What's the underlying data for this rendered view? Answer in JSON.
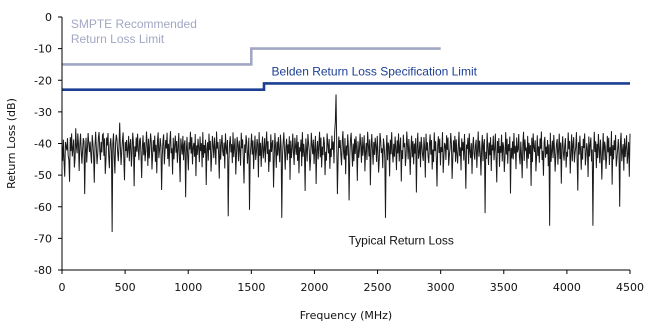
{
  "chart_data": {
    "type": "line",
    "xlabel": "Frequency (MHz)",
    "ylabel": "Return Loss (dB)",
    "xlim": [
      0,
      4500
    ],
    "ylim": [
      -80,
      0
    ],
    "xticks": [
      0,
      500,
      1000,
      1500,
      2000,
      2500,
      3000,
      3500,
      4000,
      4500
    ],
    "yticks": [
      0,
      -10,
      -20,
      -30,
      -40,
      -50,
      -60,
      -70,
      -80
    ],
    "grid": false,
    "legend": "none",
    "series": [
      {
        "name": "SMPTE Recommended Return Loss Limit",
        "color": "#a2a7c3",
        "x": [
          0,
          1500,
          1500,
          3000
        ],
        "y": [
          -15,
          -15,
          -10,
          -10
        ]
      },
      {
        "name": "Belden Return Loss Specification Limit",
        "color": "#1c3f94",
        "x": [
          0,
          1600,
          1600,
          4500
        ],
        "y": [
          -23,
          -23,
          -21,
          -21
        ]
      },
      {
        "name": "Typical Return Loss",
        "color": "#1a1a1a",
        "x_range": [
          0,
          4500
        ],
        "y": [
          -40.6,
          -45.5,
          -38.8,
          -45.9,
          -50.5,
          -39.5,
          -40.9,
          -42.2,
          -38.3,
          -43.9,
          -45.2,
          -52.1,
          -38.0,
          -42.4,
          -36.8,
          -44.1,
          -41.6,
          -38.7,
          -47.6,
          -44.7,
          -35.2,
          -41.0,
          -43.1,
          -36.8,
          -40.2,
          -48.7,
          -40.4,
          -36.9,
          -42.3,
          -46.4,
          -42.1,
          -38.3,
          -39.3,
          -56.0,
          -43.2,
          -38.2,
          -46.0,
          -41.6,
          -36.7,
          -39.9,
          -42.7,
          -39.4,
          -43.6,
          -46.3,
          -37.3,
          -40.0,
          -43.8,
          -52.4,
          -40.9,
          -36.3,
          -41.4,
          -46.5,
          -43.3,
          -38.1,
          -36.4,
          -42.3,
          -45.2,
          -39.5,
          -42.8,
          -37.2,
          -36.9,
          -43.9,
          -38.4,
          -49.6,
          -45.2,
          -38.1,
          -40.6,
          -36.7,
          -44.1,
          -47.8,
          -40.3,
          -38.3,
          -42.6,
          -68.0,
          -40.1,
          -36.8,
          -44.3,
          -49.5,
          -40.2,
          -37.2,
          -38.6,
          -42.7,
          -45.6,
          -40.8,
          -33.4,
          -41.2,
          -46.8,
          -42.4,
          -39.1,
          -36.5,
          -44.8,
          -51.6,
          -39.5,
          -42.4,
          -38.9,
          -44.5,
          -41.9,
          -37.6,
          -45.6,
          -40.3,
          -38.6,
          -47.3,
          -43.0,
          -36.6,
          -39.8,
          -53.5,
          -40.9,
          -44.2,
          -38.1,
          -42.6,
          -36.9,
          -41.8,
          -45.3,
          -39.0,
          -38.2,
          -43.6,
          -50.9,
          -41.1,
          -37.4,
          -43.7,
          -39.6,
          -45.6,
          -42.3,
          -36.2,
          -40.3,
          -47.1,
          -38.5,
          -44.7,
          -41.3,
          -36.8,
          -39.6,
          -48.2,
          -43.4,
          -38.9,
          -42.6,
          -37.5,
          -45.8,
          -40.4,
          -49.4,
          -39.1,
          -36.5,
          -44.6,
          -42.1,
          -38.3,
          -40.9,
          -54.7,
          -43.9,
          -39.2,
          -37.1,
          -46.6,
          -42.5,
          -38.9,
          -41.6,
          -36.6,
          -44.9,
          -40.1,
          -47.3,
          -39.4,
          -36.1,
          -43.1,
          -41.5,
          -49.8,
          -38.2,
          -45.0,
          -40.7,
          -37.5,
          -42.9,
          -39.2,
          -46.1,
          -41.4,
          -36.7,
          -44.4,
          -52.2,
          -38.4,
          -40.8,
          -43.5,
          -37.6,
          -45.3,
          -40.2,
          -39.0,
          -57.0,
          -42.7,
          -37.9,
          -44.0,
          -48.5,
          -39.6,
          -41.9,
          -36.3,
          -43.2,
          -38.0,
          -46.6,
          -41.1,
          -39.8,
          -44.2,
          -37.0,
          -50.3,
          -40.6,
          -43.6,
          -38.5,
          -41.3,
          -45.9,
          -37.8,
          -42.4,
          -39.9,
          -47.5,
          -36.4,
          -44.5,
          -40.5,
          -43.1,
          -38.8,
          -53.1,
          -41.7,
          -39.6,
          -45.4,
          -36.9,
          -42.1,
          -39.2,
          -48.9,
          -43.8,
          -37.6,
          -40.7,
          -44.6,
          -38.1,
          -42.0,
          -46.7,
          -36.2,
          -41.6,
          -39.5,
          -43.3,
          -51.1,
          -38.6,
          -45.1,
          -40.1,
          -37.3,
          -42.5,
          -44.0,
          -39.7,
          -47.9,
          -36.8,
          -41.2,
          -43.4,
          -38.9,
          -63.0,
          -45.5,
          -39.9,
          -37.7,
          -42.8,
          -40.2,
          -46.2,
          -36.5,
          -44.3,
          -41.0,
          -38.4,
          -49.8,
          -43.7,
          -37.9,
          -40.6,
          -45.6,
          -39.1,
          -42.2,
          -47.0,
          -36.6,
          -41.5,
          -38.7,
          -44.8,
          -52.6,
          -40.3,
          -43.0,
          -37.4,
          -39.6,
          -46.4,
          -42.6,
          -38.2,
          -61.0,
          -44.1,
          -40.8,
          -36.9,
          -43.5,
          -39.0,
          -48.1,
          -41.8,
          -37.5,
          -45.2,
          -42.9,
          -38.6,
          -40.4,
          -50.7,
          -36.4,
          -43.9,
          -39.8,
          -47.4,
          -41.3,
          -37.8,
          -44.7,
          -42.0,
          -38.3,
          -46.0,
          -40.5,
          -36.2,
          -43.3,
          -39.3,
          -49.0,
          -41.9,
          -45.8,
          -37.1,
          -42.7,
          -40.0,
          -38.9,
          -53.9,
          -44.5,
          -36.7,
          -41.4,
          -47.7,
          -39.4,
          -43.8,
          -38.0,
          -42.2,
          -45.9,
          -37.2,
          -40.7,
          -63.5,
          -44.0,
          -39.7,
          -36.5,
          -42.4,
          -48.3,
          -41.1,
          -38.5,
          -45.3,
          -40.3,
          -43.2,
          -37.7,
          -51.5,
          -39.1,
          -44.6,
          -41.7,
          -36.9,
          -42.8,
          -46.8,
          -38.2,
          -40.9,
          -43.6,
          -37.3,
          -45.5,
          -39.5,
          -49.4,
          -41.2,
          -42.5,
          -38.7,
          -47.2,
          -36.4,
          -44.2,
          -40.1,
          -43.0,
          -55.0,
          -38.4,
          -41.8,
          -45.7,
          -37.0,
          -39.9,
          -42.3,
          -48.6,
          -44.9,
          -36.6,
          -40.5,
          -43.4,
          -38.8,
          -46.5,
          -41.5,
          -37.6,
          -52.8,
          -42.1,
          -39.2,
          -45.0,
          -40.6,
          -36.3,
          -44.4,
          -38.1,
          -47.6,
          -41.0,
          -43.7,
          -37.9,
          -39.7,
          -50.0,
          -42.6,
          -45.4,
          -36.8,
          -40.2,
          -43.1,
          -38.6,
          -48.0,
          -41.6,
          -44.3,
          -37.5,
          -42.0,
          -39.4,
          -46.3,
          -36.5,
          -33.0,
          -24.5,
          -40.4,
          -56.0,
          -44.8,
          -37.8,
          -41.4,
          -38.9,
          -43.5,
          -46.9,
          -39.6,
          -36.1,
          -42.9,
          -45.1,
          -38.3,
          -49.7,
          -40.7,
          -43.8,
          -37.1,
          -41.3,
          -58.0,
          -44.0,
          -39.0,
          -36.6,
          -42.4,
          -47.3,
          -40.0,
          -45.6,
          -38.5,
          -43.3,
          -37.7,
          -41.7,
          -51.8,
          -39.3,
          -44.5,
          -42.2,
          -36.9,
          -40.8,
          -46.1,
          -38.0,
          -43.9,
          -41.1,
          -37.4,
          -48.8,
          -42.7,
          -39.8,
          -45.2,
          -36.3,
          -40.3,
          -44.1,
          -38.7,
          -53.2,
          -42.0,
          -37.0,
          -41.9,
          -46.7,
          -39.5,
          -43.6,
          -38.2,
          -40.9,
          -45.8,
          -37.6,
          -42.5,
          -49.2,
          -44.7,
          -36.7,
          -39.1,
          -43.0,
          -41.5,
          -47.8,
          -38.4,
          -40.5,
          -44.6,
          -63.5,
          -42.3,
          -37.3,
          -45.3,
          -39.7,
          -41.0,
          -50.4,
          -38.8,
          -43.4,
          -36.4,
          -42.8,
          -46.0,
          -40.1,
          -44.2,
          -37.8,
          -41.6,
          -48.4,
          -39.0,
          -43.1,
          -36.8,
          -45.7,
          -40.6,
          -38.1,
          -52.0,
          -42.1,
          -44.9,
          -37.2,
          -41.2,
          -39.9,
          -47.1,
          -43.7,
          -36.2,
          -40.4,
          -45.0,
          -38.6,
          -42.6,
          -49.9,
          -41.8,
          -37.5,
          -44.4,
          -39.2,
          -46.6,
          -40.0,
          -43.2,
          -38.3,
          -55.5,
          -41.4,
          -36.6,
          -44.8,
          -42.9,
          -39.4,
          -47.5,
          -37.9,
          -40.7,
          -43.8,
          -45.5,
          -38.0,
          -41.3,
          -50.8,
          -36.9,
          -42.2,
          -39.6,
          -44.1,
          -46.2,
          -40.2,
          -37.1,
          -43.5,
          -38.9,
          -48.2,
          -41.9,
          -45.9,
          -36.5,
          -42.4,
          -39.3,
          -44.7,
          -53.6,
          -40.8,
          -37.7,
          -43.0,
          -38.5,
          -46.9,
          -41.1,
          -42.7,
          -36.4,
          -49.3,
          -44.3,
          -39.8,
          -40.5,
          -45.2,
          -37.4,
          -42.0,
          -38.1,
          -47.0,
          -43.6,
          -41.6,
          -36.7,
          -40.1,
          -51.2,
          -44.5,
          -39.0,
          -42.8,
          -37.6,
          -45.8,
          -38.7,
          -43.3,
          -46.3,
          -40.9,
          -36.3,
          -44.0,
          -41.2,
          -48.5,
          -38.4,
          -42.3,
          -39.5,
          -45.4,
          -37.0,
          -43.9,
          -54.3,
          -40.3,
          -41.7,
          -38.2,
          -46.5,
          -36.8,
          -42.5,
          -44.6,
          -39.9,
          -49.6,
          -41.0,
          -37.9,
          -43.4,
          -45.1,
          -40.6,
          -38.8,
          -47.7,
          -42.1,
          -36.2,
          -44.2,
          -39.1,
          -43.1,
          -50.1,
          -41.5,
          -37.3,
          -45.6,
          -40.0,
          -38.6,
          -62.0,
          -42.6,
          -44.9,
          -36.6,
          -41.3,
          -46.8,
          -39.7,
          -43.7,
          -38.0,
          -48.7,
          -40.4,
          -42.2,
          -37.5,
          -45.3,
          -41.8,
          -36.9,
          -44.4,
          -52.3,
          -39.2,
          -43.0,
          -38.3,
          -47.4,
          -40.8,
          -42.9,
          -37.2,
          -45.7,
          -39.6,
          -41.1,
          -49.0,
          -44.1,
          -36.4,
          -43.5,
          -38.5,
          -46.4,
          -40.2,
          -42.4,
          -37.8,
          -55.8,
          -41.4,
          -44.7,
          -39.3,
          -45.0,
          -36.7,
          -43.2,
          -40.7,
          -48.1,
          -38.1,
          -42.8,
          -41.9,
          -37.0,
          -44.3,
          -46.6,
          -39.4,
          -43.6,
          -51.0,
          -40.1,
          -36.3,
          -45.5,
          -38.7,
          -42.0,
          -41.6,
          -47.9,
          -37.6,
          -44.8,
          -39.8,
          -43.3,
          -40.5,
          -53.4,
          -38.2,
          -45.9,
          -36.8,
          -41.2,
          -42.7,
          -39.0,
          -48.8,
          -44.0,
          -37.4,
          -43.9,
          -40.9,
          -46.1,
          -38.4,
          -41.7,
          -36.2,
          -45.2,
          -42.3,
          -50.2,
          -39.5,
          -37.9,
          -44.5,
          -41.0,
          -43.4,
          -38.9,
          -47.2,
          -40.3,
          -66.0,
          -36.6,
          -45.8,
          -42.5,
          -39.1,
          -44.6,
          -37.3,
          -41.5,
          -48.9,
          -43.7,
          -40.0,
          -38.6,
          -46.7,
          -42.1,
          -36.9,
          -44.9,
          -39.7,
          -52.7,
          -41.3,
          -37.7,
          -43.1,
          -45.4,
          -40.6,
          -38.3,
          -47.6,
          -42.6,
          -44.2,
          -36.5,
          -41.8,
          -39.2,
          -49.5,
          -43.0,
          -37.1,
          -45.6,
          -40.2,
          -38.0,
          -46.0,
          -42.9,
          -41.1,
          -36.4,
          -44.7,
          -54.9,
          -39.6,
          -43.5,
          -37.5,
          -42.2,
          -48.3,
          -40.8,
          -45.1,
          -38.5,
          -41.4,
          -36.8,
          -46.9,
          -43.8,
          -39.9,
          -42.0,
          -50.6,
          -37.8,
          -44.1,
          -40.4,
          -38.1,
          -45.7,
          -41.9,
          -66.0,
          -43.3,
          -36.3,
          -42.7,
          -39.3,
          -47.8,
          -40.1,
          -44.6,
          -37.0,
          -41.6,
          -46.2,
          -38.8,
          -43.6,
          -51.4,
          -42.4,
          -36.7,
          -45.3,
          -39.4,
          -40.9,
          -48.0,
          -44.4,
          -37.6,
          -42.8,
          -38.2,
          -46.8,
          -41.2,
          -43.9,
          -36.1,
          -53.0,
          -40.5,
          -45.0,
          -39.0,
          -42.1,
          -37.3,
          -47.3,
          -44.8,
          -41.7,
          -38.6,
          -43.2,
          -60.0,
          -39.8,
          -36.6,
          -45.6,
          -42.5,
          -40.2,
          -48.6,
          -38.4,
          -44.3,
          -41.0,
          -37.4,
          -46.4,
          -43.4,
          -39.5,
          -50.5,
          -36.9
        ]
      }
    ],
    "annotations": [
      {
        "text": "SMPTE Recommended\nReturn Loss Limit",
        "color": "#a2a7c3",
        "x": 70,
        "y": -3.5
      },
      {
        "text": "Belden Return Loss Specification Limit",
        "color": "#1c3f94",
        "x": 1660,
        "y": -18.5
      },
      {
        "text": "Typical Return Loss",
        "color": "#111111",
        "x": 2270,
        "y": -72
      }
    ]
  }
}
